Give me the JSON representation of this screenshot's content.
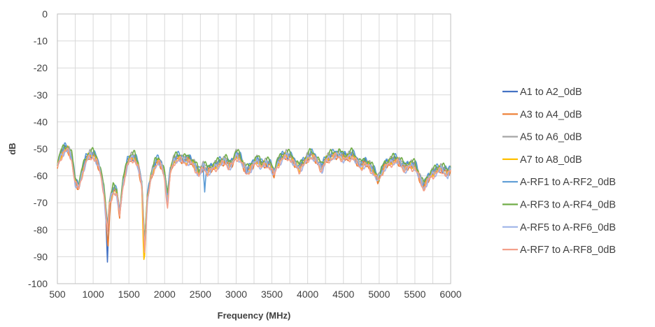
{
  "chart_data": {
    "type": "line",
    "title": "",
    "xlabel": "Frequency (MHz)",
    "ylabel": "dB",
    "xlim": [
      500,
      6000
    ],
    "ylim": [
      -100,
      0
    ],
    "x_ticks": [
      "500",
      "1000",
      "1500",
      "2000",
      "2500",
      "3000",
      "3500",
      "4000",
      "4500",
      "5000",
      "5500",
      "6000"
    ],
    "y_ticks": [
      "0",
      "-10",
      "-20",
      "-30",
      "-40",
      "-50",
      "-60",
      "-70",
      "-80",
      "-90",
      "-100"
    ],
    "grid": true,
    "legend_position": "right",
    "series": [
      {
        "name": "A1 to A2_0dB",
        "color": "#4472c4",
        "offset": 0.0,
        "notch": {
          "x": 1200,
          "y": -92
        }
      },
      {
        "name": "A3 to A4_0dB",
        "color": "#ed7d31",
        "offset": -0.5,
        "notch": {
          "x": 1210,
          "y": -86
        }
      },
      {
        "name": "A5 to A6_0dB",
        "color": "#a5a5a5",
        "offset": 0.4,
        "notch": {
          "x": 1720,
          "y": -87
        }
      },
      {
        "name": "A7 to A8_0dB",
        "color": "#ffc000",
        "offset": -0.3,
        "notch": {
          "x": 1710,
          "y": -91
        }
      },
      {
        "name": "A-RF1 to A-RF2_0dB",
        "color": "#5b9bd5",
        "offset": 0.8,
        "notch": {
          "x": 2560,
          "y": -66
        }
      },
      {
        "name": "A-RF3 to A-RF4_0dB",
        "color": "#70ad47",
        "offset": 1.0,
        "notch": {
          "x": 5000,
          "y": -62
        }
      },
      {
        "name": "A-RF5 to A-RF6_0dB",
        "color": "#9fb4e8",
        "offset": -0.8,
        "notch": {
          "x": 1190,
          "y": -78
        }
      },
      {
        "name": "A-RF7 to A-RF8_0dB",
        "color": "#f4a08a",
        "offset": -1.0,
        "notch": {
          "x": 2040,
          "y": -72
        }
      }
    ],
    "base_curve": [
      [
        500,
        -56
      ],
      [
        550,
        -52
      ],
      [
        600,
        -50
      ],
      [
        650,
        -50
      ],
      [
        700,
        -53
      ],
      [
        750,
        -62
      ],
      [
        800,
        -64
      ],
      [
        850,
        -58
      ],
      [
        900,
        -54
      ],
      [
        950,
        -52
      ],
      [
        1000,
        -52
      ],
      [
        1050,
        -54
      ],
      [
        1100,
        -58
      ],
      [
        1150,
        -65
      ],
      [
        1200,
        -80
      ],
      [
        1230,
        -70
      ],
      [
        1280,
        -65
      ],
      [
        1330,
        -66
      ],
      [
        1370,
        -74
      ],
      [
        1420,
        -62
      ],
      [
        1480,
        -55
      ],
      [
        1530,
        -53
      ],
      [
        1580,
        -53
      ],
      [
        1630,
        -56
      ],
      [
        1680,
        -63
      ],
      [
        1720,
        -86
      ],
      [
        1760,
        -68
      ],
      [
        1810,
        -60
      ],
      [
        1860,
        -56
      ],
      [
        1910,
        -54
      ],
      [
        1960,
        -56
      ],
      [
        2000,
        -60
      ],
      [
        2040,
        -68
      ],
      [
        2080,
        -58
      ],
      [
        2130,
        -54
      ],
      [
        2200,
        -53
      ],
      [
        2280,
        -54
      ],
      [
        2350,
        -54
      ],
      [
        2420,
        -56
      ],
      [
        2480,
        -59
      ],
      [
        2540,
        -56
      ],
      [
        2600,
        -58
      ],
      [
        2660,
        -57
      ],
      [
        2720,
        -56
      ],
      [
        2780,
        -55
      ],
      [
        2850,
        -54
      ],
      [
        2900,
        -56
      ],
      [
        2950,
        -55
      ],
      [
        3000,
        -52
      ],
      [
        3050,
        -53
      ],
      [
        3100,
        -56
      ],
      [
        3150,
        -58
      ],
      [
        3200,
        -57
      ],
      [
        3250,
        -55
      ],
      [
        3300,
        -54
      ],
      [
        3350,
        -56
      ],
      [
        3420,
        -55
      ],
      [
        3480,
        -56
      ],
      [
        3530,
        -59
      ],
      [
        3580,
        -55
      ],
      [
        3650,
        -53
      ],
      [
        3700,
        -52
      ],
      [
        3760,
        -53
      ],
      [
        3820,
        -55
      ],
      [
        3880,
        -57
      ],
      [
        3950,
        -55
      ],
      [
        4000,
        -53
      ],
      [
        4050,
        -52
      ],
      [
        4100,
        -53
      ],
      [
        4150,
        -55
      ],
      [
        4200,
        -57
      ],
      [
        4250,
        -54
      ],
      [
        4300,
        -53
      ],
      [
        4380,
        -52
      ],
      [
        4450,
        -52
      ],
      [
        4500,
        -53
      ],
      [
        4560,
        -53
      ],
      [
        4620,
        -52
      ],
      [
        4680,
        -54
      ],
      [
        4740,
        -56
      ],
      [
        4800,
        -55
      ],
      [
        4860,
        -56
      ],
      [
        4920,
        -58
      ],
      [
        4980,
        -61
      ],
      [
        5020,
        -59
      ],
      [
        5080,
        -56
      ],
      [
        5140,
        -55
      ],
      [
        5200,
        -54
      ],
      [
        5250,
        -54
      ],
      [
        5300,
        -55
      ],
      [
        5360,
        -57
      ],
      [
        5420,
        -56
      ],
      [
        5500,
        -56
      ],
      [
        5560,
        -60
      ],
      [
        5620,
        -64
      ],
      [
        5680,
        -61
      ],
      [
        5740,
        -59
      ],
      [
        5800,
        -58
      ],
      [
        5860,
        -57
      ],
      [
        5920,
        -58
      ],
      [
        5960,
        -59
      ],
      [
        6000,
        -57
      ]
    ]
  }
}
